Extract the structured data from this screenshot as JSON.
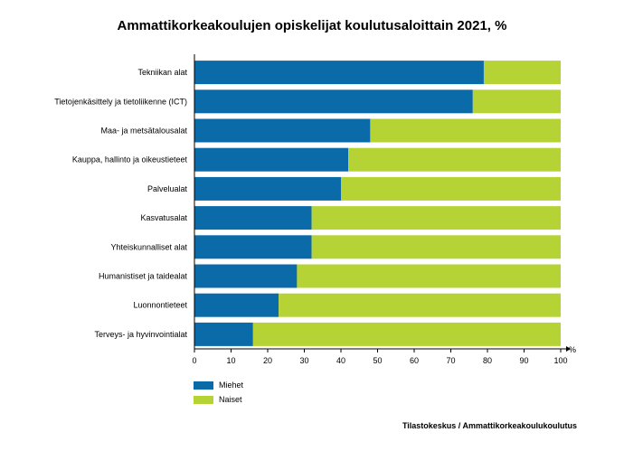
{
  "chart_data": {
    "type": "bar",
    "orientation": "horizontal",
    "stacked": true,
    "title": "Ammattikorkeakoulujen opiskelijat koulutusaloittain 2021, %",
    "xlabel": "%",
    "ylabel": "",
    "xlim": [
      0,
      100
    ],
    "xticks": [
      0,
      10,
      20,
      30,
      40,
      50,
      60,
      70,
      80,
      90,
      100
    ],
    "grid": false,
    "legend_position": "bottom-left",
    "categories": [
      "Tekniikan alat",
      "Tietojenkäsittely ja tietoliikenne (ICT)",
      "Maa- ja metsätalousalat",
      "Kauppa, hallinto ja oikeustieteet",
      "Palvelualat",
      "Kasvatusalat",
      "Yhteiskunnalliset alat",
      "Humanistiset ja taidealat",
      "Luonnontieteet",
      "Terveys- ja hyvinvointialat"
    ],
    "series": [
      {
        "name": "Miehet",
        "color": "#0b6aa8",
        "values": [
          79,
          76,
          48,
          42,
          40,
          32,
          32,
          28,
          23,
          16
        ]
      },
      {
        "name": "Naiset",
        "color": "#b5d334",
        "values": [
          21,
          24,
          52,
          58,
          60,
          68,
          68,
          72,
          77,
          84
        ]
      }
    ]
  },
  "source": "Tilastokeskus / Ammattikorkeakoulukoulutus"
}
